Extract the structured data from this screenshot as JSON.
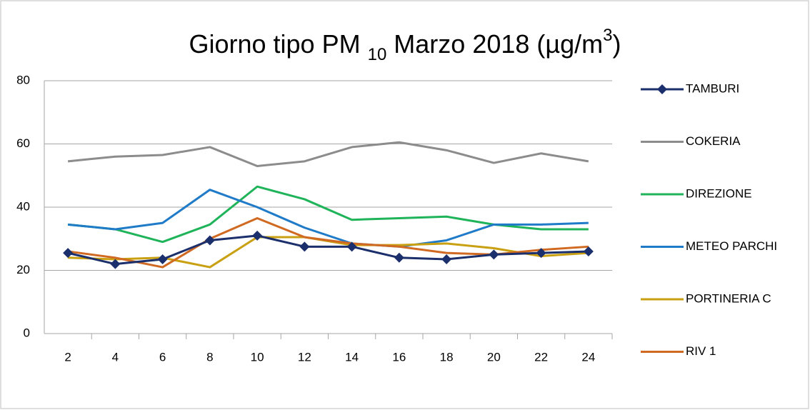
{
  "chart_data": {
    "type": "line",
    "title": [
      "Giorno tipo PM ",
      "10",
      " Marzo 2018 (µg/m",
      "3",
      ")"
    ],
    "categories": [
      2,
      4,
      6,
      8,
      10,
      12,
      14,
      16,
      18,
      20,
      22,
      24
    ],
    "ylim": [
      0,
      80
    ],
    "yticks": [
      0,
      20,
      40,
      60,
      80
    ],
    "grid": true,
    "legend": "right",
    "series": [
      {
        "name": "TAMBURI",
        "color": "#1a2f6b",
        "marker": "diamond",
        "values": [
          25.5,
          22,
          23.5,
          29.5,
          31,
          27.5,
          27.5,
          24,
          23.5,
          25,
          25.5,
          26
        ]
      },
      {
        "name": "COKERIA",
        "color": "#8c8c8c",
        "values": [
          54.5,
          56,
          56.5,
          59,
          53,
          54.5,
          59,
          60.5,
          58,
          54,
          57,
          54.5
        ]
      },
      {
        "name": "DIREZIONE",
        "color": "#1fb35a",
        "values": [
          34.5,
          33,
          29,
          34.5,
          46.5,
          42.5,
          36,
          36.5,
          37,
          34.5,
          33,
          33
        ]
      },
      {
        "name": "METEO PARCHI",
        "color": "#1f7bc8",
        "values": [
          34.5,
          33,
          35,
          45.5,
          40,
          33.5,
          28.5,
          27.5,
          29.5,
          34.5,
          34.5,
          35
        ]
      },
      {
        "name": "PORTINERIA C",
        "color": "#c9a012",
        "values": [
          24,
          23.5,
          24,
          21,
          30.5,
          30.5,
          28,
          28,
          28.5,
          27,
          24.5,
          25.5
        ]
      },
      {
        "name": "RIV 1",
        "color": "#d06a22",
        "values": [
          26,
          24,
          21,
          30,
          36.5,
          30.5,
          28.5,
          27.5,
          25.5,
          25,
          26.5,
          27.5
        ]
      }
    ]
  }
}
